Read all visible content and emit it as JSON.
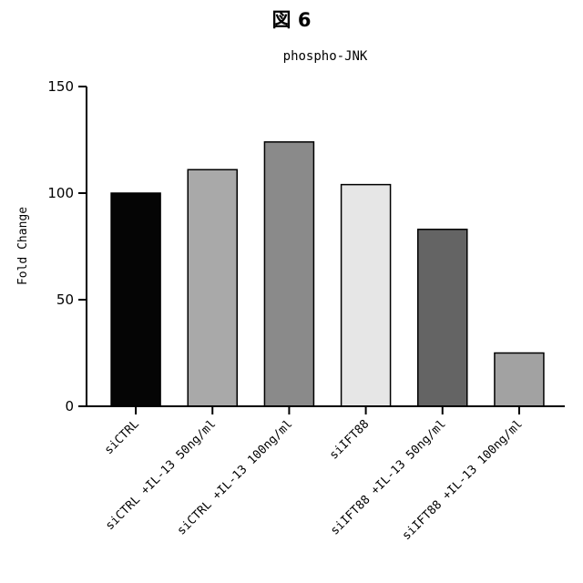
{
  "figure_label": "図 6",
  "chart_data": {
    "type": "bar",
    "title": "phospho-JNK",
    "xlabel": "",
    "ylabel": "Fold Change",
    "ylim": [
      0,
      150
    ],
    "yticks": [
      0,
      50,
      100,
      150
    ],
    "categories": [
      "siCTRL",
      "siCTRL +IL-13 50ng/ml",
      "siCTRL +IL-13 100ng/ml",
      "siIFT88",
      "siIFT88 +IL-13 50ng/ml",
      "siIFT88 +IL-13 100ng/ml"
    ],
    "values": [
      100,
      111,
      124,
      104,
      83,
      25
    ],
    "bar_colors": [
      "#050505",
      "#a9a9a9",
      "#8a8a8a",
      "#e6e6e6",
      "#646464",
      "#a2a2a2"
    ],
    "grid": false
  }
}
